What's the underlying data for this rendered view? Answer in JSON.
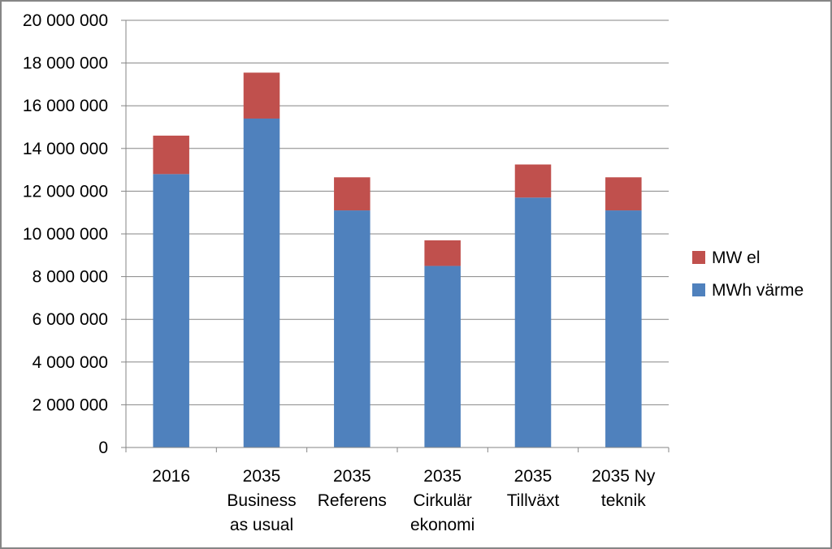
{
  "chart_data": {
    "type": "bar",
    "stacked": true,
    "title": "",
    "xlabel": "",
    "ylabel": "",
    "ylim": [
      0,
      20000000
    ],
    "ytick_step": 2000000,
    "yticks": [
      "0",
      "2 000 000",
      "4 000 000",
      "6 000 000",
      "8 000 000",
      "10 000 000",
      "12 000 000",
      "14 000 000",
      "16 000 000",
      "18 000 000",
      "20 000 000"
    ],
    "grid": true,
    "legend_position": "right",
    "categories": [
      [
        "2016"
      ],
      [
        "2035",
        "Business",
        "as usual"
      ],
      [
        "2035",
        "Referens"
      ],
      [
        "2035",
        "Cirkulär",
        "ekonomi"
      ],
      [
        "2035",
        "Tillväxt"
      ],
      [
        "2035 Ny",
        "teknik"
      ]
    ],
    "series": [
      {
        "name": "MWh värme",
        "color": "#4F81BD",
        "values": [
          12800000,
          15400000,
          11100000,
          8500000,
          11700000,
          11100000
        ]
      },
      {
        "name": "MW el",
        "color": "#C0504D",
        "values": [
          1800000,
          2150000,
          1550000,
          1200000,
          1550000,
          1550000
        ]
      }
    ],
    "legend_order": [
      1,
      0
    ]
  }
}
